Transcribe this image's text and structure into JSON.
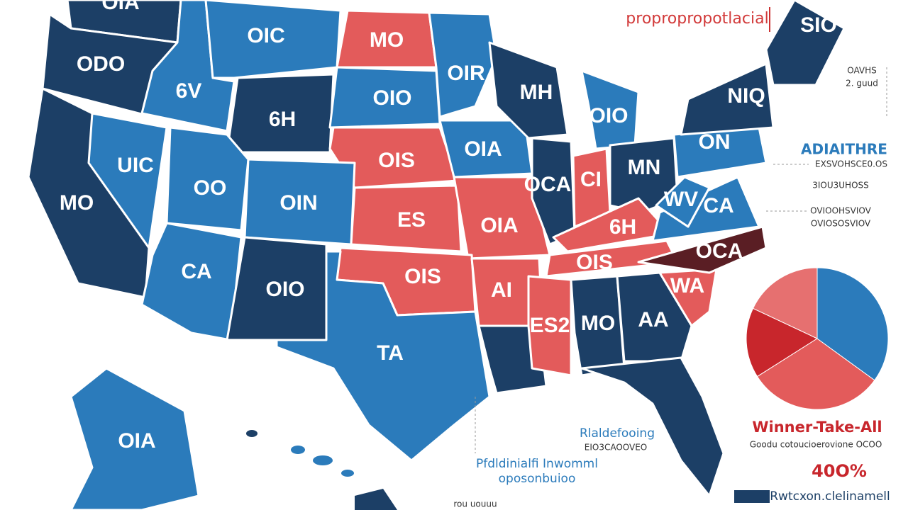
{
  "map": {
    "title": "propropropotlacial",
    "states": [
      "OIA",
      "ODO",
      "6V",
      "OIC",
      "MO",
      "OIR",
      "6H",
      "OIO",
      "OIS",
      "OIA",
      "MH",
      "OIO",
      "UIC",
      "OO",
      "OIN",
      "ES",
      "OIA",
      "OCA",
      "CI",
      "MN",
      "ON",
      "NIQ",
      "SIO",
      "MO",
      "CA",
      "OIO",
      "OIS",
      "TA",
      "AI",
      "6H",
      "OIS",
      "ES2",
      "MO",
      "AA",
      "WA",
      "OCA",
      "CA",
      "WV",
      "OIA"
    ],
    "side_notes": [
      "OAVHS",
      "2. guud",
      "ADIAITHRE",
      "EXSVOHSCE0.OS",
      "3IOU3UHOSS",
      "OVIOOHSVIOV",
      "OVIOSOSVIOV"
    ],
    "callouts": [
      "Rlaldefooing",
      "EIO3CAOOVEO",
      "Pfdldinialfi Inwomml",
      "oposonbuioo",
      "rou uouuu"
    ],
    "pie": {
      "type": "pie",
      "values": [
        35,
        31,
        16,
        18
      ],
      "colors": [
        "#2b7bbb",
        "#e35b5b",
        "#c8262c",
        "#e67070"
      ],
      "title": "Winner-Take-All",
      "subtitle": "Goodu cotoucioerovione OCOO",
      "percent_label": "40O%",
      "legend": "Rwtcxon.clelinamell"
    }
  }
}
